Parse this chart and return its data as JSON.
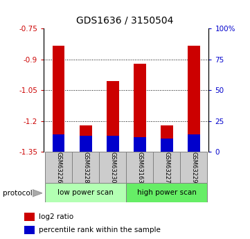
{
  "title": "GDS1636 / 3150504",
  "samples": [
    "GSM63226",
    "GSM63228",
    "GSM63230",
    "GSM63163",
    "GSM63227",
    "GSM63229"
  ],
  "log2_ratio": [
    -0.832,
    -1.223,
    -1.005,
    -0.92,
    -1.222,
    -0.832
  ],
  "percentile_rank": [
    14,
    13,
    13,
    12,
    11,
    14
  ],
  "bar_bottom": -1.35,
  "ylim_left": [
    -1.35,
    -0.75
  ],
  "ylim_right": [
    0,
    100
  ],
  "yticks_left": [
    -1.35,
    -1.2,
    -1.05,
    -0.9,
    -0.75
  ],
  "yticks_right": [
    0,
    25,
    50,
    75,
    100
  ],
  "ytick_labels_left": [
    "-1.35",
    "-1.2",
    "-1.05",
    "-0.9",
    "-0.75"
  ],
  "ytick_labels_right": [
    "0",
    "25",
    "50",
    "75",
    "100%"
  ],
  "groups": [
    {
      "label": "low power scan",
      "indices": [
        0,
        1,
        2
      ],
      "color": "#b3ffb3"
    },
    {
      "label": "high power scan",
      "indices": [
        3,
        4,
        5
      ],
      "color": "#66ee66"
    }
  ],
  "bar_color_red": "#cc0000",
  "bar_color_blue": "#0000cc",
  "bar_width": 0.45,
  "bg_color": "#ffffff",
  "plot_bg": "#ffffff",
  "title_fontsize": 10,
  "axis_label_color_left": "#cc0000",
  "axis_label_color_right": "#0000cc",
  "grid_color": "#000000",
  "sample_box_color": "#cccccc",
  "protocol_label": "protocol",
  "legend_items": [
    "log2 ratio",
    "percentile rank within the sample"
  ]
}
